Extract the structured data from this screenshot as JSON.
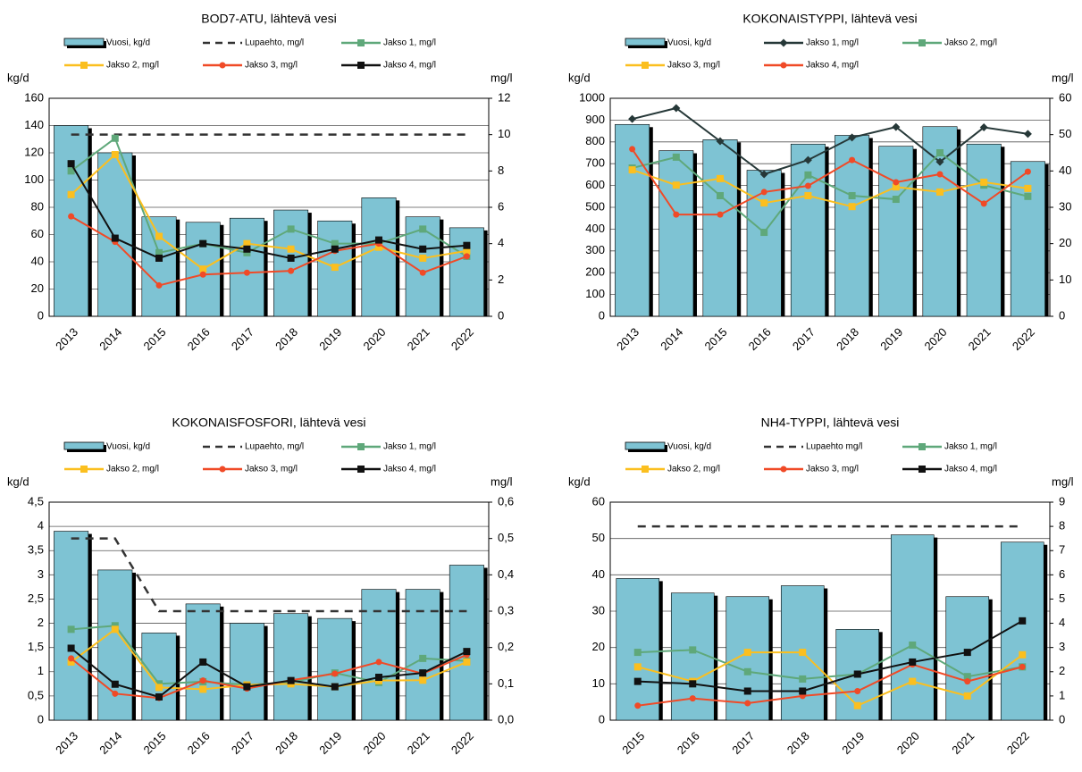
{
  "chart_data": [
    {
      "type": "combo",
      "title": "BOD7-ATU, lähtevä vesi",
      "ylabel": "kg/d",
      "y2label": "mg/l",
      "categories": [
        "2013",
        "2014",
        "2015",
        "2016",
        "2017",
        "2018",
        "2019",
        "2020",
        "2021",
        "2022"
      ],
      "ylim": [
        0,
        160
      ],
      "yticks": [
        0,
        20,
        40,
        60,
        80,
        100,
        120,
        140,
        160
      ],
      "y2lim": [
        0,
        12
      ],
      "y2ticks": [
        0,
        2,
        4,
        6,
        8,
        10,
        12
      ],
      "grid": true,
      "series": [
        {
          "name": "Vuosi, kg/d",
          "color": "#7ec3d3",
          "kind": "bar",
          "values": [
            140,
            120,
            73,
            69,
            72,
            78,
            70,
            87,
            73,
            65
          ]
        },
        {
          "name": "Lupaehto, mg/l",
          "color": "#333333",
          "kind": "line",
          "style": "dashed",
          "axis": "y2",
          "values": [
            10,
            10,
            10,
            10,
            10,
            10,
            10,
            10,
            10,
            10
          ]
        },
        {
          "name": "Jakso 1, mg/l",
          "color": "#5fa87a",
          "kind": "line",
          "marker": "square",
          "axis": "y2",
          "values": [
            8.0,
            9.8,
            3.5,
            4.0,
            3.5,
            4.8,
            4.0,
            4.0,
            4.8,
            3.3
          ]
        },
        {
          "name": "Jakso 2, mg/l",
          "color": "#fbbf1f",
          "kind": "line",
          "marker": "square",
          "axis": "y2",
          "values": [
            6.7,
            8.9,
            4.4,
            2.6,
            4.0,
            3.7,
            2.7,
            3.8,
            3.2,
            3.6
          ]
        },
        {
          "name": "Jakso 3, mg/l",
          "color": "#f04a27",
          "kind": "line",
          "marker": "circle",
          "axis": "y2",
          "values": [
            5.5,
            4.1,
            1.7,
            2.3,
            2.4,
            2.5,
            3.6,
            4.0,
            2.4,
            3.3
          ]
        },
        {
          "name": "Jakso 4, mg/l",
          "color": "#111111",
          "kind": "line",
          "marker": "square",
          "axis": "y2",
          "values": [
            8.4,
            4.3,
            3.2,
            4.0,
            3.7,
            3.2,
            3.7,
            4.2,
            3.7,
            3.9
          ]
        }
      ]
    },
    {
      "type": "combo",
      "title": "KOKONAISTYPPI, lähtevä vesi",
      "ylabel": "kg/d",
      "y2label": "mg/l",
      "categories": [
        "2013",
        "2014",
        "2015",
        "2016",
        "2017",
        "2018",
        "2019",
        "2020",
        "2021",
        "2022"
      ],
      "ylim": [
        0,
        1000
      ],
      "yticks": [
        0,
        100,
        200,
        300,
        400,
        500,
        600,
        700,
        800,
        900,
        1000
      ],
      "y2lim": [
        0,
        60
      ],
      "y2ticks": [
        0,
        10,
        20,
        30,
        40,
        50,
        60
      ],
      "grid": true,
      "series": [
        {
          "name": "Vuosi, kg/d",
          "color": "#7ec3d3",
          "kind": "bar",
          "values": [
            880,
            760,
            810,
            670,
            790,
            830,
            780,
            870,
            790,
            710
          ]
        },
        {
          "name": "Jakso 1, mg/l",
          "color": "#263838",
          "kind": "line",
          "marker": "diamond",
          "axis": "y2",
          "values": [
            54.3,
            57.3,
            48.2,
            39.1,
            43,
            49.2,
            52.1,
            42.5,
            52,
            50.2
          ]
        },
        {
          "name": "Jakso 2, mg/l",
          "color": "#5fa87a",
          "kind": "line",
          "marker": "square",
          "axis": "y2",
          "values": [
            40.8,
            43.8,
            33.2,
            23.1,
            38.9,
            33.2,
            32.2,
            45,
            36.1,
            33
          ]
        },
        {
          "name": "Jakso 3, mg/l",
          "color": "#fbbf1f",
          "kind": "line",
          "marker": "square",
          "axis": "y2",
          "values": [
            40.3,
            36.1,
            37.9,
            31.2,
            33.2,
            30.2,
            35.6,
            34.2,
            36.9,
            35.2
          ]
        },
        {
          "name": "Jakso 4, mg/l",
          "color": "#f04a27",
          "kind": "line",
          "marker": "circle",
          "axis": "y2",
          "values": [
            46,
            28,
            28,
            34.2,
            35.9,
            43,
            36.9,
            39.1,
            31,
            39.8
          ]
        }
      ]
    },
    {
      "type": "combo",
      "title": "KOKONAISFOSFORI, lähtevä vesi",
      "ylabel": "kg/d",
      "y2label": "mg/l",
      "categories": [
        "2013",
        "2014",
        "2015",
        "2016",
        "2017",
        "2018",
        "2019",
        "2020",
        "2021",
        "2022"
      ],
      "ylim": [
        0,
        4.5
      ],
      "yticks": [
        0,
        {
          "value": 0.5,
          "label": "0,5"
        },
        1,
        {
          "value": 1.5,
          "label": "1,5"
        },
        2,
        {
          "value": 2.5,
          "label": "2,5"
        },
        3,
        {
          "value": 3.5,
          "label": "3,5"
        },
        4,
        {
          "value": 4.5,
          "label": "4,5"
        }
      ],
      "y2lim": [
        0,
        0.6
      ],
      "y2ticks": [
        {
          "value": 0,
          "label": "0,0"
        },
        {
          "value": 0.1,
          "label": "0,1"
        },
        {
          "value": 0.2,
          "label": "0,2"
        },
        {
          "value": 0.3,
          "label": "0,3"
        },
        {
          "value": 0.4,
          "label": "0,4"
        },
        {
          "value": 0.5,
          "label": "0,5"
        },
        {
          "value": 0.6,
          "label": "0,6"
        }
      ],
      "grid": true,
      "series": [
        {
          "name": "Vuosi, kg/d",
          "color": "#7ec3d3",
          "kind": "bar",
          "values": [
            3.9,
            3.1,
            1.8,
            2.4,
            2.0,
            2.2,
            2.1,
            2.7,
            2.7,
            3.2
          ]
        },
        {
          "name": "Lupaehto, mg/l",
          "color": "#333333",
          "kind": "line",
          "style": "dashed",
          "axis": "y2",
          "values": [
            0.5,
            0.5,
            0.3,
            0.3,
            0.3,
            0.3,
            0.3,
            0.3,
            0.3,
            0.3
          ]
        },
        {
          "name": "Jakso 1, mg/l",
          "color": "#5fa87a",
          "kind": "line",
          "marker": "square",
          "axis": "y2",
          "values": [
            0.25,
            0.26,
            0.1,
            0.106,
            0.097,
            0.104,
            0.13,
            0.104,
            0.17,
            0.163
          ]
        },
        {
          "name": "Jakso 2, mg/l",
          "color": "#fbbf1f",
          "kind": "line",
          "marker": "square",
          "axis": "y2",
          "values": [
            0.16,
            0.25,
            0.09,
            0.085,
            0.097,
            0.1,
            0.092,
            0.109,
            0.11,
            0.16
          ]
        },
        {
          "name": "Jakso 3, mg/l",
          "color": "#f04a27",
          "kind": "line",
          "marker": "circle",
          "axis": "y2",
          "values": [
            0.17,
            0.073,
            0.061,
            0.109,
            0.087,
            0.11,
            0.128,
            0.16,
            0.128,
            0.18
          ]
        },
        {
          "name": "Jakso 4, mg/l",
          "color": "#111111",
          "kind": "line",
          "marker": "square",
          "axis": "y2",
          "values": [
            0.198,
            0.099,
            0.064,
            0.16,
            0.092,
            0.109,
            0.092,
            0.118,
            0.13,
            0.189
          ]
        }
      ]
    },
    {
      "type": "combo",
      "title": "NH4-TYPPI, lähtevä vesi",
      "ylabel": "kg/d",
      "y2label": "mg/l",
      "categories": [
        "2015",
        "2016",
        "2017",
        "2018",
        "2019",
        "2020",
        "2021",
        "2022"
      ],
      "ylim": [
        0,
        60
      ],
      "yticks": [
        0,
        10,
        20,
        30,
        40,
        50,
        60
      ],
      "y2lim": [
        0,
        9
      ],
      "y2ticks": [
        0,
        1,
        2,
        3,
        4,
        5,
        6,
        7,
        8,
        9
      ],
      "grid": true,
      "series": [
        {
          "name": "Vuosi, kg/d",
          "color": "#7ec3d3",
          "kind": "bar",
          "values": [
            39,
            35,
            34,
            37,
            25,
            51,
            34,
            49
          ]
        },
        {
          "name": "Lupaehto mg/l",
          "color": "#333333",
          "kind": "line",
          "style": "dashed",
          "axis": "y2",
          "values": [
            8,
            8,
            8,
            8,
            8,
            8,
            8,
            8
          ]
        },
        {
          "name": "Jakso 1, mg/l",
          "color": "#5fa87a",
          "kind": "line",
          "marker": "square",
          "axis": "y2",
          "values": [
            2.8,
            2.9,
            2.0,
            1.7,
            1.9,
            3.1,
            1.8,
            2.2
          ]
        },
        {
          "name": "Jakso 2, mg/l",
          "color": "#fbbf1f",
          "kind": "line",
          "marker": "square",
          "axis": "y2",
          "values": [
            2.2,
            1.6,
            2.8,
            2.8,
            0.6,
            1.6,
            1.0,
            2.7
          ]
        },
        {
          "name": "Jakso 3, mg/l",
          "color": "#f04a27",
          "kind": "line",
          "marker": "circle",
          "axis": "y2",
          "values": [
            0.6,
            0.9,
            0.7,
            1.0,
            1.2,
            2.3,
            1.6,
            2.2
          ]
        },
        {
          "name": "Jakso 4, mg/l",
          "color": "#111111",
          "kind": "line",
          "marker": "square",
          "axis": "y2",
          "values": [
            1.6,
            1.5,
            1.2,
            1.2,
            1.9,
            2.4,
            2.8,
            4.1
          ]
        }
      ]
    }
  ]
}
